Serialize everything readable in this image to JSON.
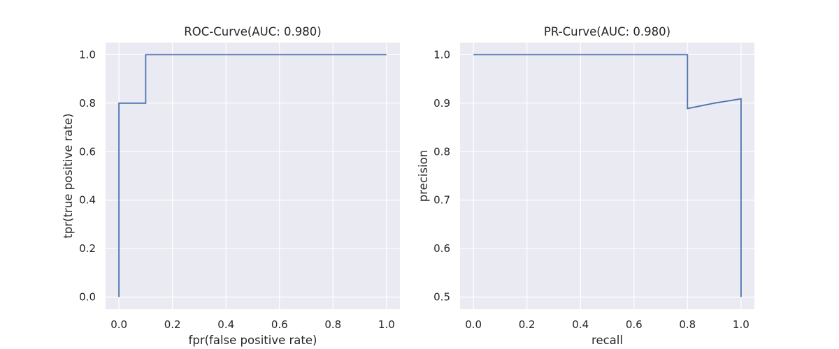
{
  "chart_data": [
    {
      "type": "line",
      "title": "ROC-Curve(AUC: 0.980)",
      "xlabel": "fpr(false positive rate)",
      "ylabel": "tpr(true positive rate)",
      "xlim": [
        -0.05,
        1.05
      ],
      "ylim": [
        -0.05,
        1.05
      ],
      "xticks": [
        "0.0",
        "0.2",
        "0.4",
        "0.6",
        "0.8",
        "1.0"
      ],
      "yticks": [
        "0.0",
        "0.2",
        "0.4",
        "0.6",
        "0.8",
        "1.0"
      ],
      "grid": true,
      "series": [
        {
          "name": "ROC",
          "color": "#4c72b0",
          "x": [
            0.0,
            0.0,
            0.1,
            0.1,
            1.0
          ],
          "y": [
            0.0,
            0.8,
            0.8,
            1.0,
            1.0
          ]
        }
      ]
    },
    {
      "type": "line",
      "title": "PR-Curve(AUC: 0.980)",
      "xlabel": "recall",
      "ylabel": "precision",
      "xlim": [
        -0.05,
        1.05
      ],
      "ylim": [
        0.475,
        1.025
      ],
      "xticks": [
        "0.0",
        "0.2",
        "0.4",
        "0.6",
        "0.8",
        "1.0"
      ],
      "yticks": [
        "0.5",
        "0.6",
        "0.7",
        "0.8",
        "0.9",
        "1.0"
      ],
      "grid": true,
      "series": [
        {
          "name": "PR",
          "color": "#4c72b0",
          "x": [
            0.0,
            0.8,
            0.8,
            0.9,
            1.0,
            1.0
          ],
          "y": [
            1.0,
            1.0,
            0.889,
            0.9,
            0.909,
            0.5
          ]
        }
      ]
    }
  ],
  "colors": {
    "plot_background": "#eaeaf2",
    "grid": "#ffffff",
    "line": "#4c72b0",
    "text": "#262626"
  }
}
